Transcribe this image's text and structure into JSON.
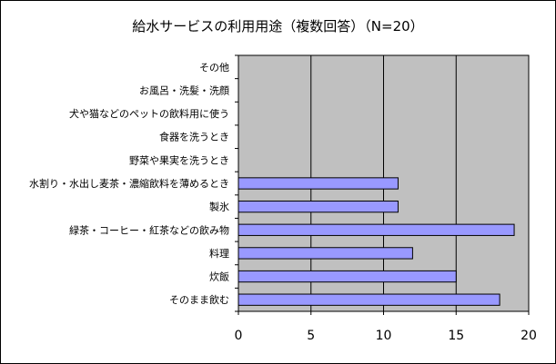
{
  "chart_data": {
    "type": "bar",
    "orientation": "horizontal",
    "title": "給水サービスの利用用途（複数回答）（N=20）",
    "categories": [
      "その他",
      "お風呂・洗髪・洗顔",
      "犬や猫などのペットの飲料用に使う",
      "食器を洗うとき",
      "野菜や果実を洗うとき",
      "水割り・水出し麦茶・濃縮飲料を薄めるとき",
      "製氷",
      "緑茶・コーヒー・紅茶などの飲み物",
      "料理",
      "炊飯",
      "そのまま飲む"
    ],
    "values": [
      0,
      0,
      0,
      0,
      0,
      11,
      11,
      19,
      12,
      15,
      18
    ],
    "xlim": [
      0,
      20
    ],
    "xticks": [
      "0",
      "5",
      "10",
      "15",
      "20"
    ],
    "xlabel": "",
    "ylabel": "",
    "grid": true,
    "legend": "none",
    "colors": {
      "bar_fill": "#9999ff",
      "bar_stroke": "#000000",
      "plot_bg": "#c0c0c0",
      "gridline": "#000000"
    }
  }
}
